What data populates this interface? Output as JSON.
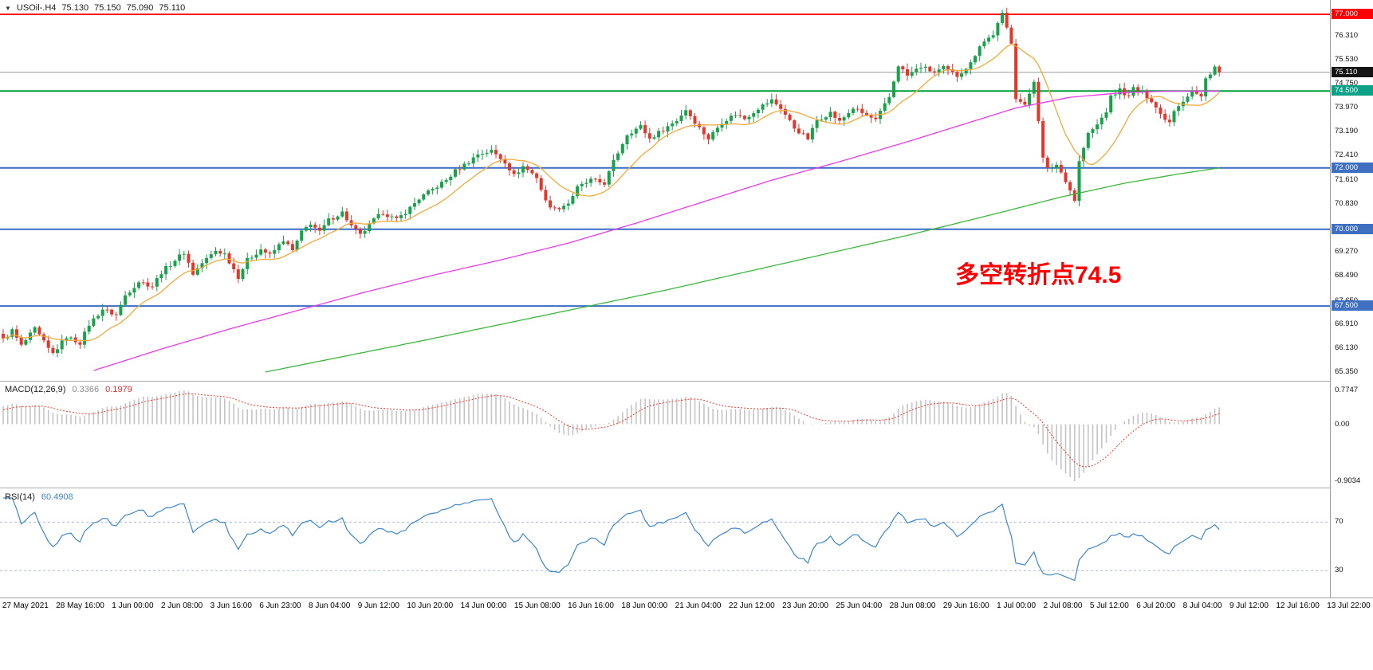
{
  "header": {
    "symbol_timeframe": "USOil-.H4",
    "open": "75.130",
    "high": "75.150",
    "low": "75.090",
    "close": "75.110"
  },
  "annotation": {
    "text": "多空转折点74.5",
    "color": "#ff0000"
  },
  "indicators": {
    "macd": {
      "label": "MACD(12,26,9)",
      "main_value": "0.3366",
      "signal_value": "0.1979"
    },
    "rsi": {
      "label": "RSI(14)",
      "value": "60.4908"
    }
  },
  "chart_data": {
    "type": "candlestick",
    "title": "USOil-.H4",
    "symbol": "USOil-",
    "timeframe": "H4",
    "ylim": [
      65.35,
      77.47
    ],
    "ohlc_current": {
      "open": 75.13,
      "high": 75.15,
      "low": 75.09,
      "close": 75.11
    },
    "last_price": 75.11,
    "up_color": "#17a24b",
    "down_color": "#e2382c",
    "candle_count": 270,
    "close_anchors": [
      [
        0,
        66.4
      ],
      [
        2,
        66.7
      ],
      [
        4,
        66.2
      ],
      [
        7,
        66.75
      ],
      [
        10,
        66.1
      ],
      [
        11,
        65.95
      ],
      [
        14,
        66.5
      ],
      [
        17,
        66.3
      ],
      [
        19,
        66.9
      ],
      [
        22,
        67.4
      ],
      [
        25,
        67.2
      ],
      [
        27,
        67.85
      ],
      [
        30,
        68.3
      ],
      [
        33,
        68.15
      ],
      [
        35,
        68.6
      ],
      [
        38,
        69.0
      ],
      [
        40,
        69.25
      ],
      [
        42,
        68.55
      ],
      [
        44,
        68.9
      ],
      [
        47,
        69.3
      ],
      [
        49,
        69.2
      ],
      [
        52,
        68.45
      ],
      [
        54,
        69.0
      ],
      [
        57,
        69.35
      ],
      [
        59,
        69.15
      ],
      [
        62,
        69.65
      ],
      [
        64,
        69.3
      ],
      [
        66,
        69.9
      ],
      [
        68,
        70.2
      ],
      [
        70,
        69.9
      ],
      [
        72,
        70.3
      ],
      [
        75,
        70.55
      ],
      [
        77,
        70.1
      ],
      [
        79,
        69.8
      ],
      [
        82,
        70.3
      ],
      [
        84,
        70.55
      ],
      [
        87,
        70.3
      ],
      [
        90,
        70.7
      ],
      [
        92,
        71.0
      ],
      [
        95,
        71.3
      ],
      [
        98,
        71.6
      ],
      [
        100,
        71.9
      ],
      [
        103,
        72.2
      ],
      [
        105,
        72.45
      ],
      [
        108,
        72.55
      ],
      [
        111,
        72.2
      ],
      [
        113,
        71.75
      ],
      [
        115,
        72.05
      ],
      [
        118,
        71.7
      ],
      [
        120,
        70.9
      ],
      [
        122,
        70.65
      ],
      [
        125,
        70.85
      ],
      [
        127,
        71.35
      ],
      [
        130,
        71.6
      ],
      [
        133,
        71.5
      ],
      [
        135,
        72.2
      ],
      [
        138,
        73.1
      ],
      [
        141,
        73.35
      ],
      [
        143,
        72.95
      ],
      [
        146,
        73.25
      ],
      [
        149,
        73.55
      ],
      [
        151,
        73.9
      ],
      [
        154,
        73.3
      ],
      [
        156,
        72.95
      ],
      [
        159,
        73.5
      ],
      [
        162,
        73.75
      ],
      [
        164,
        73.6
      ],
      [
        167,
        73.95
      ],
      [
        170,
        74.2
      ],
      [
        172,
        73.95
      ],
      [
        175,
        73.3
      ],
      [
        178,
        72.95
      ],
      [
        180,
        73.55
      ],
      [
        183,
        73.8
      ],
      [
        185,
        73.5
      ],
      [
        188,
        73.95
      ],
      [
        191,
        73.7
      ],
      [
        193,
        73.55
      ],
      [
        196,
        74.3
      ],
      [
        198,
        75.35
      ],
      [
        200,
        75.0
      ],
      [
        203,
        75.3
      ],
      [
        206,
        75.1
      ],
      [
        208,
        75.25
      ],
      [
        211,
        75.0
      ],
      [
        214,
        75.4
      ],
      [
        216,
        76.0
      ],
      [
        219,
        76.35
      ],
      [
        221,
        77.0
      ],
      [
        223,
        76.1
      ],
      [
        224,
        74.3
      ],
      [
        226,
        74.0
      ],
      [
        228,
        74.85
      ],
      [
        230,
        72.3
      ],
      [
        231,
        71.95
      ],
      [
        233,
        72.1
      ],
      [
        235,
        71.6
      ],
      [
        237,
        70.95
      ],
      [
        238,
        72.2
      ],
      [
        240,
        73.1
      ],
      [
        242,
        73.4
      ],
      [
        244,
        73.85
      ],
      [
        245,
        74.3
      ],
      [
        247,
        74.55
      ],
      [
        249,
        74.3
      ],
      [
        250,
        74.6
      ],
      [
        252,
        74.45
      ],
      [
        254,
        74.2
      ],
      [
        256,
        73.75
      ],
      [
        258,
        73.5
      ],
      [
        259,
        73.9
      ],
      [
        261,
        74.2
      ],
      [
        263,
        74.5
      ],
      [
        265,
        74.3
      ],
      [
        266,
        74.9
      ],
      [
        268,
        75.3
      ],
      [
        269,
        75.11
      ]
    ],
    "ma_fast": {
      "period": 12,
      "color": "#f2a93b"
    },
    "ma_mid": {
      "color": "#e83ce8",
      "anchors": [
        [
          20,
          65.4
        ],
        [
          35,
          66.1
        ],
        [
          50,
          66.75
        ],
        [
          65,
          67.35
        ],
        [
          80,
          67.95
        ],
        [
          95,
          68.5
        ],
        [
          110,
          69.0
        ],
        [
          125,
          69.55
        ],
        [
          140,
          70.2
        ],
        [
          155,
          70.9
        ],
        [
          170,
          71.6
        ],
        [
          185,
          72.2
        ],
        [
          200,
          72.85
        ],
        [
          212,
          73.4
        ],
        [
          224,
          73.95
        ],
        [
          236,
          74.3
        ],
        [
          248,
          74.45
        ],
        [
          258,
          74.5
        ],
        [
          269,
          74.5
        ]
      ]
    },
    "ma_slow": {
      "color": "#3db53d",
      "anchors": [
        [
          58,
          65.35
        ],
        [
          75,
          65.85
        ],
        [
          92,
          66.35
        ],
        [
          110,
          66.9
        ],
        [
          128,
          67.45
        ],
        [
          146,
          68.0
        ],
        [
          164,
          68.6
        ],
        [
          182,
          69.2
        ],
        [
          200,
          69.8
        ],
        [
          218,
          70.45
        ],
        [
          234,
          71.05
        ],
        [
          248,
          71.5
        ],
        [
          260,
          71.8
        ],
        [
          269,
          72.0
        ]
      ]
    },
    "price_axis_ticks": [
      {
        "value": 76.31,
        "label": "76.310"
      },
      {
        "value": 75.53,
        "label": "75.530"
      },
      {
        "value": 74.75,
        "label": "74.750"
      },
      {
        "value": 73.97,
        "label": "73.970"
      },
      {
        "value": 73.19,
        "label": "73.190"
      },
      {
        "value": 72.41,
        "label": "72.410"
      },
      {
        "value": 71.61,
        "label": "71.610"
      },
      {
        "value": 70.83,
        "label": "70.830"
      },
      {
        "value": 69.27,
        "label": "69.270"
      },
      {
        "value": 68.49,
        "label": "68.490"
      },
      {
        "value": 67.65,
        "label": "67.650"
      },
      {
        "value": 66.91,
        "label": "66.910"
      },
      {
        "value": 66.13,
        "label": "66.130"
      },
      {
        "value": 65.35,
        "label": "65.350"
      }
    ],
    "horizontal_lines": [
      {
        "price": 77.0,
        "label": "77.000",
        "color": "#fe0000",
        "badge_color": "#fe0000"
      },
      {
        "price": 74.5,
        "label": "74.500",
        "color": "#00a13a",
        "badge_color": "#0ba187"
      },
      {
        "price": 72.0,
        "label": "72.000",
        "color": "#3a6cc6",
        "badge_color": "#3e6fc1"
      },
      {
        "price": 70.0,
        "label": "70.000",
        "color": "#3a6cc6",
        "badge_color": "#3e6fc1"
      },
      {
        "price": 67.5,
        "label": "67.500",
        "color": "#3a6cc6",
        "badge_color": "#3e6fc1"
      }
    ],
    "last_price_line": {
      "price": 75.11,
      "label": "75.110",
      "color": "#9b9b9b",
      "badge_color": "#141414"
    },
    "macd": {
      "params": [
        12,
        26,
        9
      ],
      "hist_value": 0.3366,
      "signal_value": 0.1979,
      "axis_labels": [
        "0.7747",
        "0.00",
        "-0.9034"
      ],
      "axis_values": [
        0.7747,
        0.0,
        -0.9034
      ],
      "hist_color": "#c4c4c4",
      "signal_color": "#f23b30"
    },
    "rsi": {
      "period": 14,
      "value": 60.4908,
      "levels": [
        70,
        30
      ],
      "level_labels": [
        "70",
        "30"
      ],
      "line_color": "#3e86ca",
      "level_color": "#a9bdd6"
    },
    "time_labels": [
      "27 May 2021",
      "28 May 16:00",
      "1 Jun 00:00",
      "2 Jun 08:00",
      "3 Jun 16:00",
      "6 Jun 23:00",
      "8 Jun 04:00",
      "9 Jun 12:00",
      "10 Jun 20:00",
      "14 Jun 00:00",
      "15 Jun 08:00",
      "16 Jun 16:00",
      "18 Jun 00:00",
      "21 Jun 04:00",
      "22 Jun 12:00",
      "23 Jun 20:00",
      "25 Jun 04:00",
      "28 Jun 08:00",
      "29 Jun 16:00",
      "1 Jul 00:00",
      "2 Jul 08:00",
      "5 Jul 12:00",
      "6 Jul 20:00",
      "8 Jul 04:00",
      "9 Jul 12:00",
      "12 Jul 16:00",
      "13 Jul 22:00"
    ]
  }
}
